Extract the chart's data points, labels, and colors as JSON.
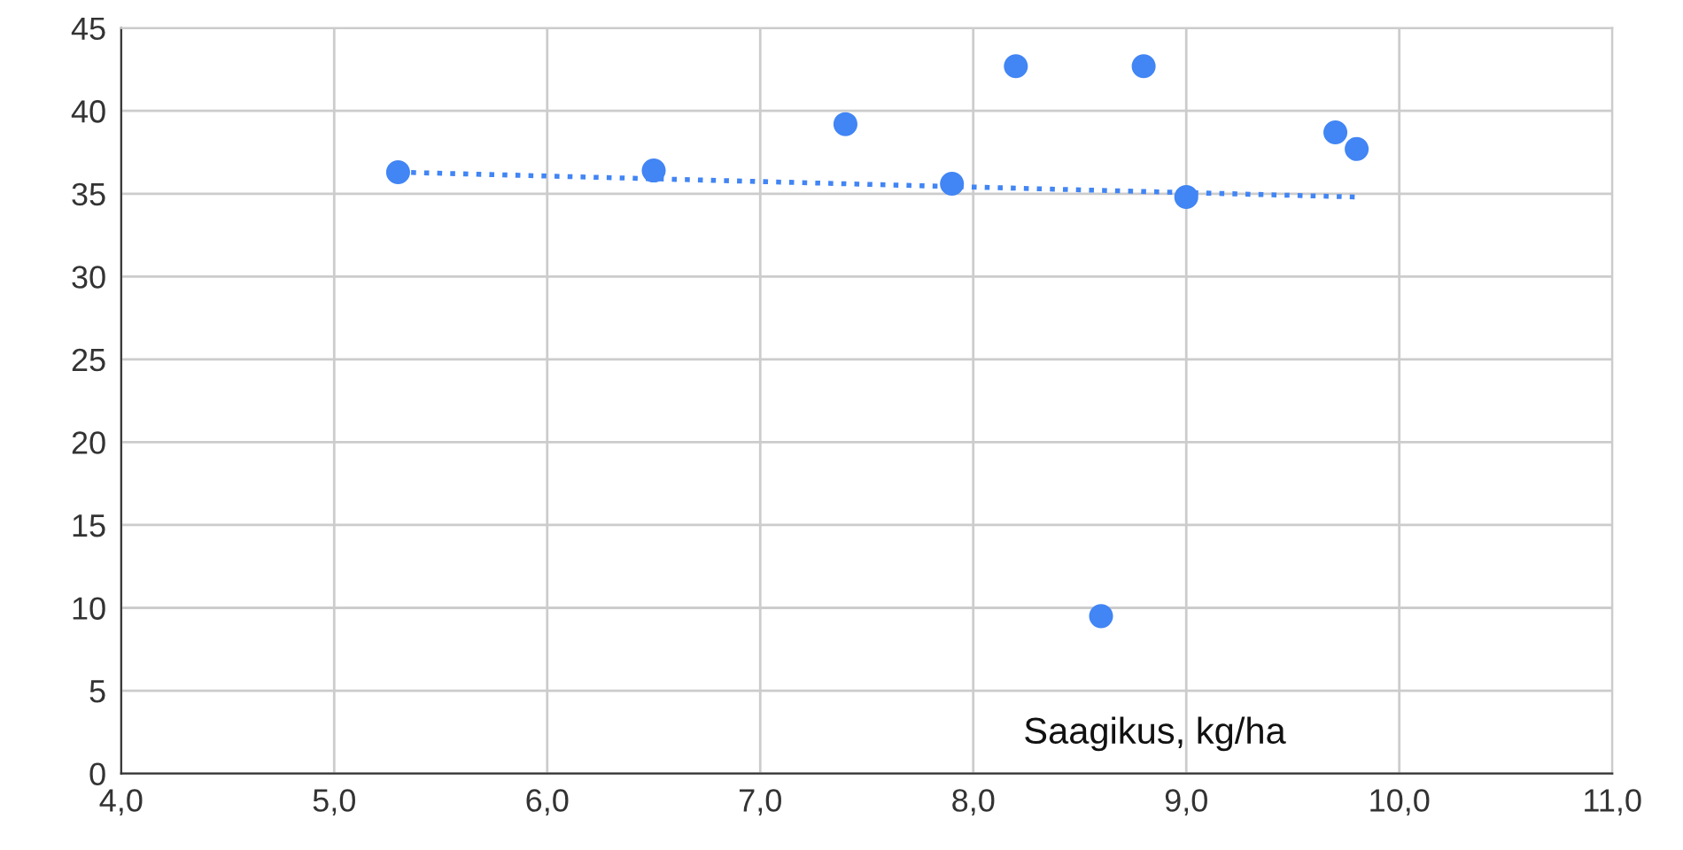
{
  "chart_data": {
    "type": "scatter",
    "xlabel": "Saagikus, kg/ha",
    "series": [
      {
        "color": "#4285f4",
        "marker": "circle",
        "x": [
          5.3,
          6.5,
          7.4,
          7.9,
          8.2,
          8.6,
          8.8,
          9.0,
          9.7,
          9.8
        ],
        "values": [
          36.3,
          36.4,
          39.2,
          35.6,
          42.7,
          9.5,
          42.7,
          34.8,
          38.7,
          37.7
        ]
      },
      {
        "type": "line",
        "color": "#4285f4",
        "line_style": "dotted",
        "x": [
          5.3,
          9.8
        ],
        "values": [
          36.3,
          34.8
        ]
      }
    ],
    "xlim": [
      4,
      11
    ],
    "xticks": [
      {
        "value": 4,
        "label": "4,0"
      },
      {
        "value": 5,
        "label": "5,0"
      },
      {
        "value": 6,
        "label": "6,0"
      },
      {
        "value": 7,
        "label": "7,0"
      },
      {
        "value": 8,
        "label": "8,0"
      },
      {
        "value": 9,
        "label": "9,0"
      },
      {
        "value": 10,
        "label": "10,0"
      },
      {
        "value": 11,
        "label": "11,0"
      }
    ],
    "ylim": [
      0,
      45
    ],
    "yticks": [
      0,
      5,
      10,
      15,
      20,
      25,
      30,
      35,
      40,
      45
    ],
    "grid": true,
    "legend": false
  }
}
